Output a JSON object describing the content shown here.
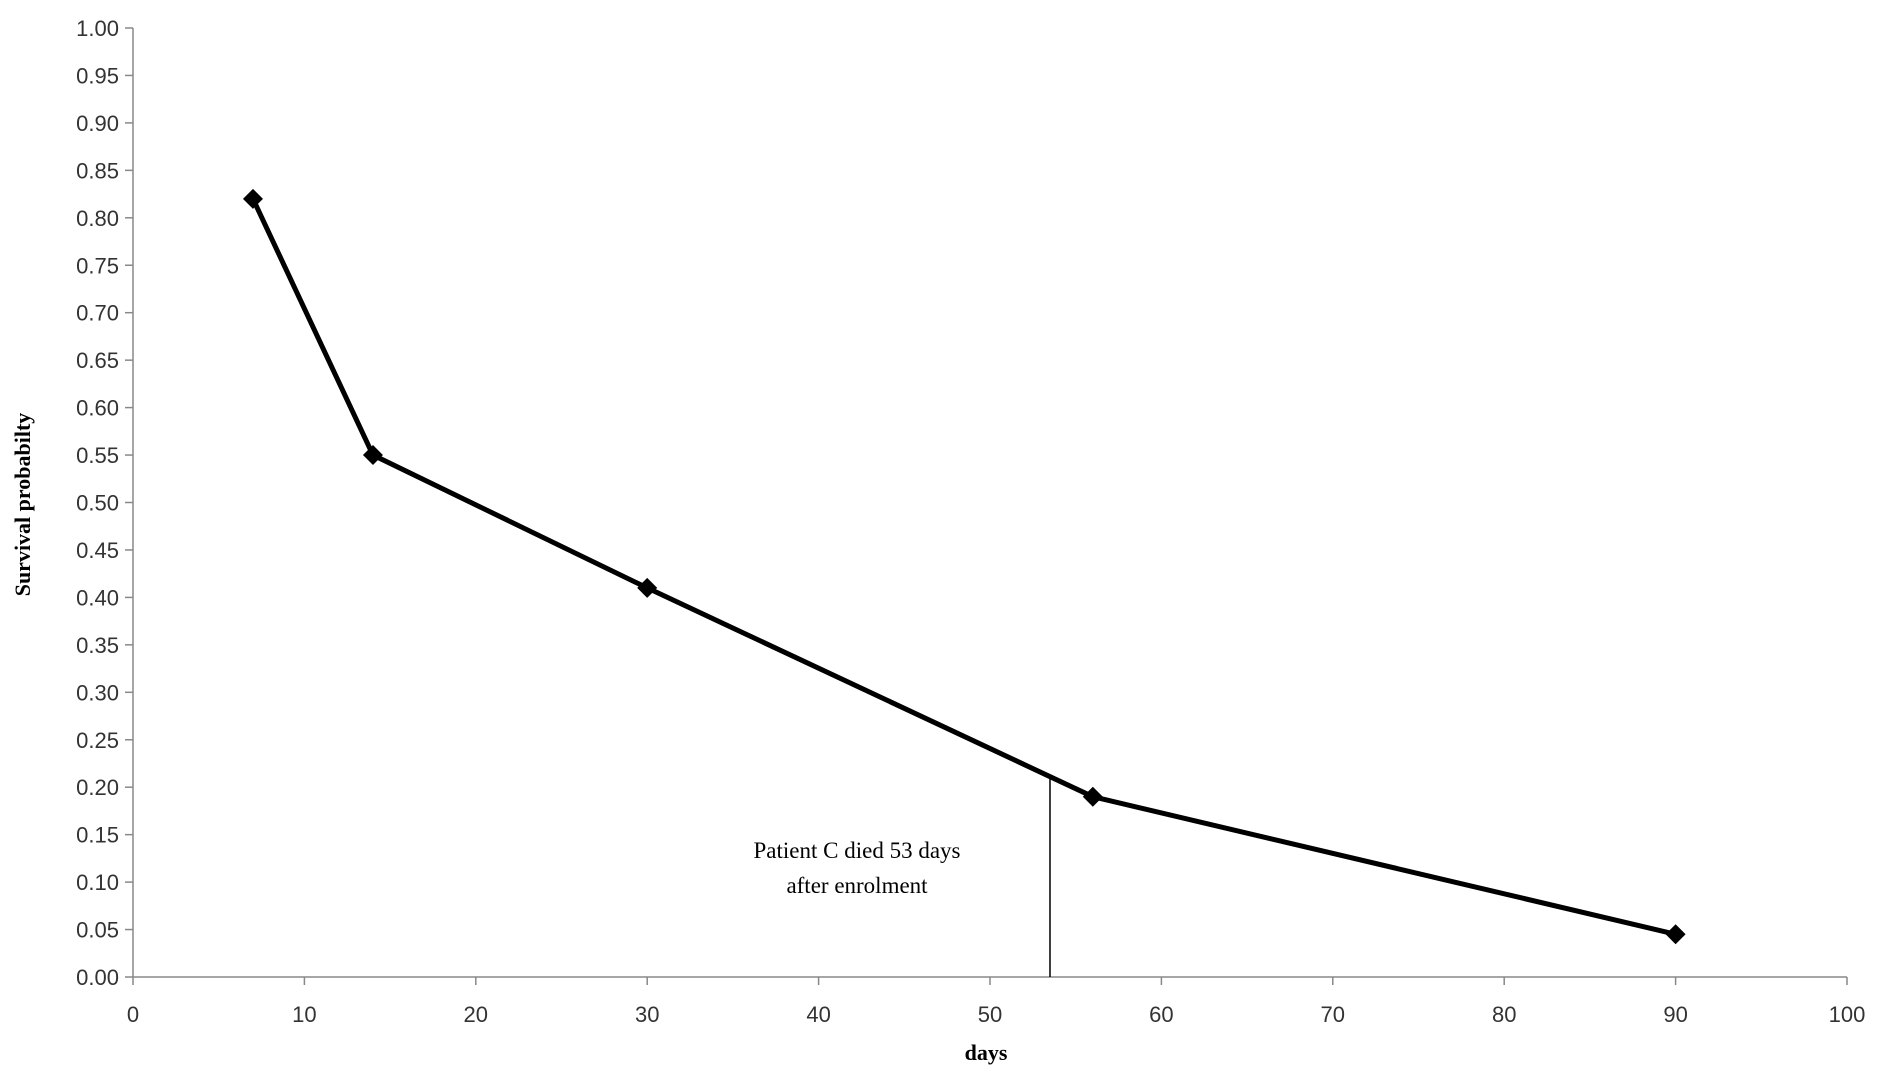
{
  "chart_data": {
    "type": "line",
    "title": "",
    "xlabel": "days",
    "ylabel": "Survival probabilty",
    "xlim": [
      0,
      100
    ],
    "ylim": [
      0,
      1
    ],
    "x_ticks": [
      "0",
      "10",
      "20",
      "30",
      "40",
      "50",
      "60",
      "70",
      "80",
      "90",
      "100"
    ],
    "y_ticks": [
      "0.00",
      "0.05",
      "0.10",
      "0.15",
      "0.20",
      "0.25",
      "0.30",
      "0.35",
      "0.40",
      "0.45",
      "0.50",
      "0.55",
      "0.60",
      "0.65",
      "0.70",
      "0.75",
      "0.80",
      "0.85",
      "0.90",
      "0.95",
      "1.00"
    ],
    "grid": false,
    "series": [
      {
        "x": [
          7,
          14,
          30,
          56,
          90
        ],
        "y": [
          0.82,
          0.55,
          0.41,
          0.19,
          0.045
        ],
        "color": "#000000",
        "marker": "diamond"
      }
    ],
    "annotations": [
      {
        "line1": "Patient C  died 53  days",
        "line2": "after enrolment",
        "x": 53.5
      }
    ]
  }
}
